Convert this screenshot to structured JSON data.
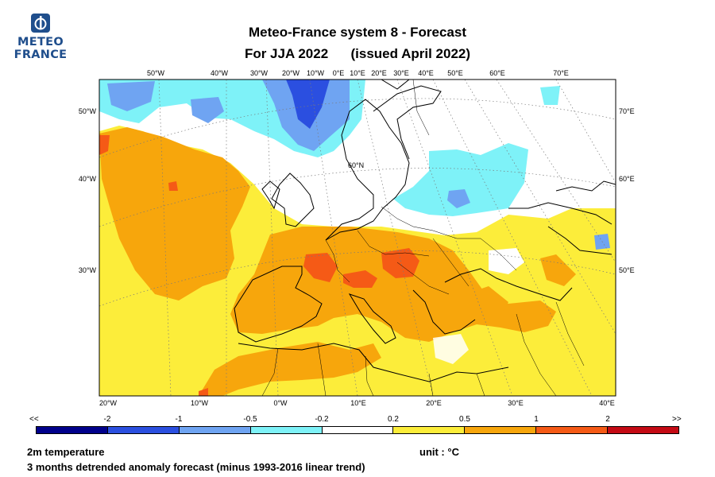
{
  "logo": {
    "line1": "METEO",
    "line2": "FRANCE"
  },
  "title": {
    "line1": "Meteo-France system 8  -  Forecast",
    "line2": "For JJA 2022      (issued April 2022)"
  },
  "map": {
    "top_lon_labels": [
      "50°W",
      "40°W",
      "30°W",
      "20°W",
      "10°W",
      "0°E",
      "10°E",
      "20°E",
      "30°E",
      "40°E",
      "50°E",
      "60°E",
      "70°E"
    ],
    "bottom_lon_labels": [
      "20°W",
      "10°W",
      "0°W",
      "10°E",
      "20°E",
      "30°E",
      "40°E"
    ],
    "left_lat_labels": [
      "50°W",
      "40°W",
      "30°W"
    ],
    "right_lat_labels": [
      "70°E",
      "60°E",
      "50°E"
    ],
    "inner_label": "60°N"
  },
  "colorbar": {
    "left_arrow": "<<",
    "right_arrow": ">>",
    "ticks": [
      "-2",
      "-1",
      "-0.5",
      "-0.2",
      "0.2",
      "0.5",
      "1",
      "2"
    ],
    "colors": [
      "#00008b",
      "#2b4fe0",
      "#6fa4f2",
      "#7ef2f8",
      "#ffffff",
      "#fced3a",
      "#f7a60c",
      "#f55a16",
      "#c40a14"
    ]
  },
  "footer": {
    "variable": "2m temperature",
    "description": "3 months detrended anomaly forecast (minus 1993-2016 linear trend)",
    "unit": "unit : °C"
  }
}
